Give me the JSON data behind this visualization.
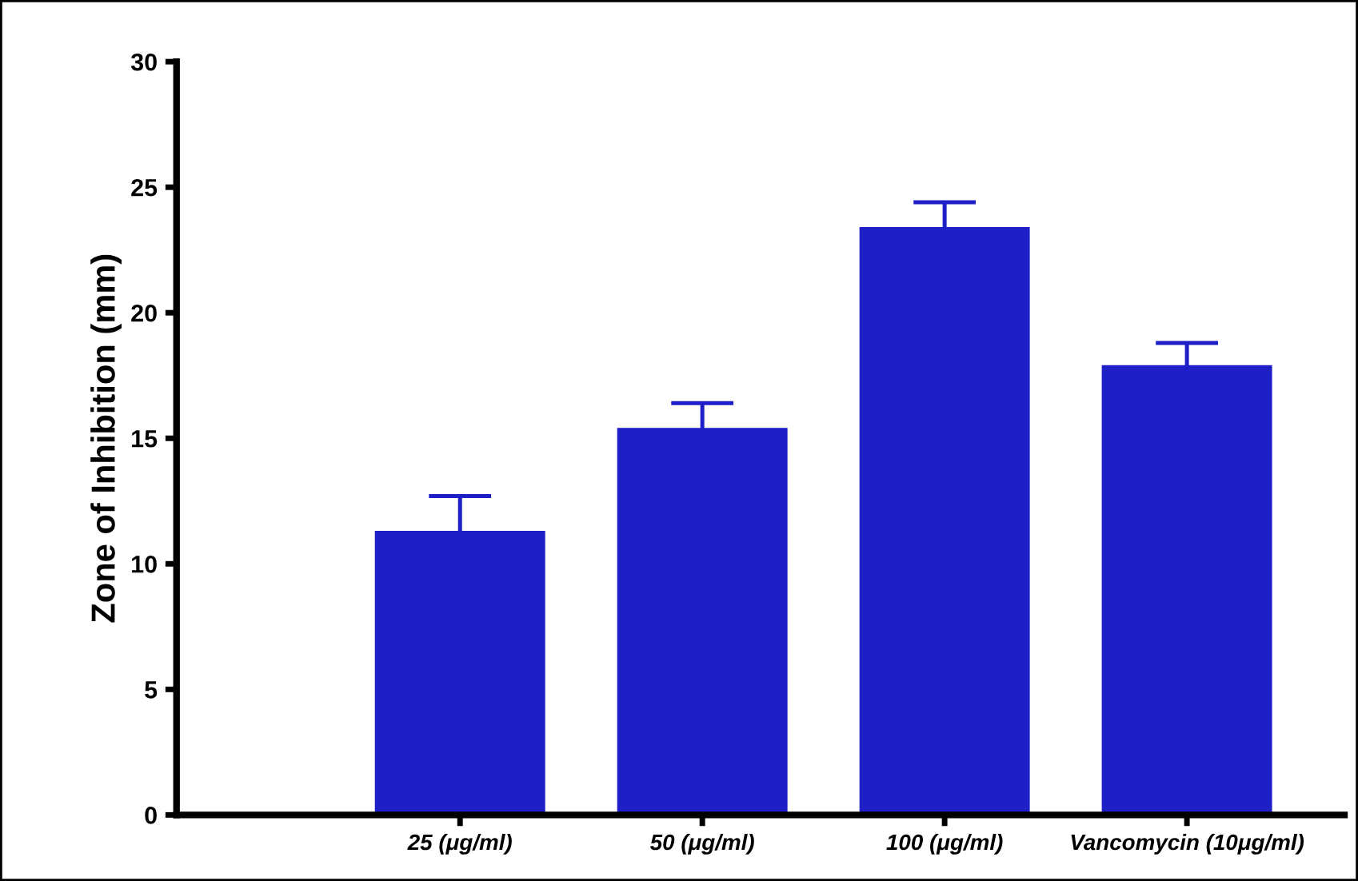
{
  "chart_data": {
    "type": "bar",
    "ylabel": "Zone of Inhibition (mm)",
    "categories": [
      "25 (μg/ml)",
      "50 (μg/ml)",
      "100 (μg/ml)",
      "Vancomycin (10μg/ml)"
    ],
    "values": [
      11.2,
      15.3,
      23.3,
      17.8
    ],
    "errors": [
      1.5,
      1.1,
      1.1,
      1.0
    ],
    "color": "#1f1fc8",
    "ylim": [
      0,
      30
    ],
    "yticks": [
      0,
      5,
      10,
      15,
      20,
      25,
      30
    ],
    "grid": false
  }
}
